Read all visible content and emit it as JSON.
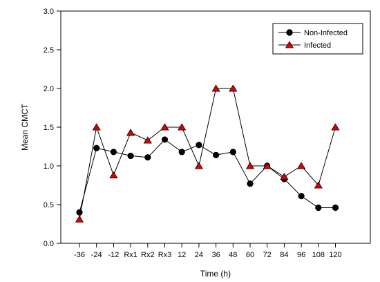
{
  "chart_data": {
    "type": "line",
    "title": "",
    "xlabel": "Time (h)",
    "ylabel": "Mean CMCT",
    "ylim": [
      0.0,
      3.0
    ],
    "yticks": [
      "0.0",
      "0.5",
      "1.0",
      "1.5",
      "2.0",
      "2.5",
      "3.0"
    ],
    "categories": [
      "-36",
      "-24",
      "-12",
      "Rx1",
      "Rx2",
      "Rx3",
      "12",
      "24",
      "36",
      "48",
      "60",
      "72",
      "84",
      "96",
      "108",
      "120"
    ],
    "grid": false,
    "legend_position": "top-right",
    "series": [
      {
        "name": "Non-Infected",
        "marker": "circle",
        "marker_color": "#000000",
        "values": [
          0.4,
          1.23,
          1.18,
          1.13,
          1.11,
          1.34,
          1.18,
          1.27,
          1.14,
          1.18,
          0.77,
          1.0,
          0.83,
          0.61,
          0.46,
          0.46
        ]
      },
      {
        "name": "Infected",
        "marker": "triangle",
        "marker_color": "#e00000",
        "values": [
          0.31,
          1.5,
          0.88,
          1.43,
          1.33,
          1.5,
          1.5,
          1.0,
          2.0,
          2.0,
          1.0,
          1.0,
          0.86,
          1.0,
          0.75,
          1.5
        ]
      }
    ]
  }
}
